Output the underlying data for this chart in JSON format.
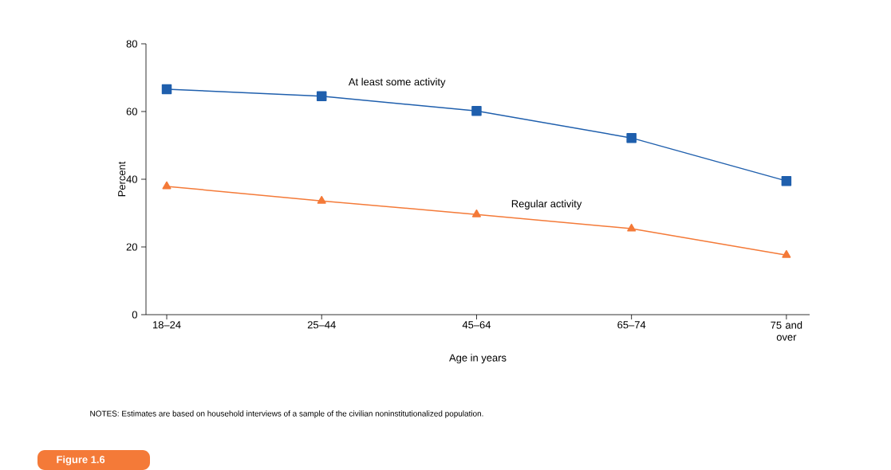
{
  "chart_data": {
    "type": "line",
    "xlabel": "Age in years",
    "ylabel": "Percent",
    "categories": [
      "18–24",
      "25–44",
      "45–64",
      "65–74",
      "75 and over"
    ],
    "series": [
      {
        "name": "At least some activity",
        "color": "#1f5fad",
        "marker": "square",
        "values": [
          66.6,
          64.5,
          60.2,
          52.2,
          39.5
        ]
      },
      {
        "name": "Regular activity",
        "color": "#f47a38",
        "marker": "triangle",
        "values": [
          37.9,
          33.6,
          29.6,
          25.4,
          17.6
        ]
      }
    ],
    "ylim": [
      0,
      80
    ],
    "yticks": [
      0,
      20,
      40,
      60,
      80
    ],
    "grid": false,
    "legend": false,
    "line_style": "solid",
    "annotations": [
      "NOTES: Estimates are based on household interviews of a sample of the civilian noninstitutionalized population.",
      "Figure 1.6"
    ]
  }
}
